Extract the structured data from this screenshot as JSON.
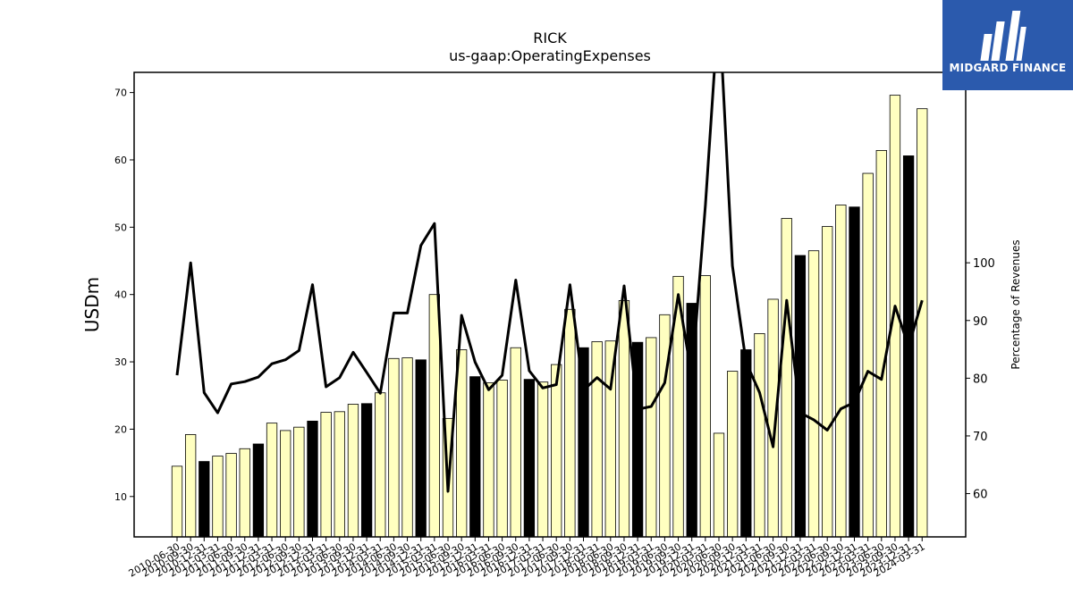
{
  "chart_data": {
    "type": "bar",
    "title": "RICK",
    "subtitle": "us-gaap:OperatingExpenses",
    "ylabel": "USDm",
    "y2label": "Percentage of Revenues",
    "ylim": [
      4,
      73
    ],
    "y2lim": [
      52.5,
      133
    ],
    "yticks": [
      10,
      20,
      30,
      40,
      50,
      60,
      70
    ],
    "y2ticks": [
      60,
      70,
      80,
      90,
      100
    ],
    "categories": [
      "2010-06-30",
      "2010-09-30",
      "2010-12-31",
      "2011-03-31",
      "2011-06-30",
      "2011-09-30",
      "2011-12-31",
      "2012-03-31",
      "2012-06-30",
      "2012-09-30",
      "2012-12-31",
      "2013-03-31",
      "2013-06-30",
      "2013-09-30",
      "2013-12-31",
      "2014-03-31",
      "2014-06-30",
      "2014-09-30",
      "2014-12-31",
      "2015-03-31",
      "2015-06-30",
      "2015-09-30",
      "2015-12-31",
      "2016-03-31",
      "2016-06-30",
      "2016-09-30",
      "2016-12-31",
      "2017-03-31",
      "2017-06-30",
      "2017-09-30",
      "2017-12-31",
      "2018-03-31",
      "2018-06-30",
      "2018-09-30",
      "2018-12-31",
      "2019-03-31",
      "2019-06-30",
      "2019-09-30",
      "2019-12-31",
      "2020-03-31",
      "2020-06-30",
      "2020-09-30",
      "2020-12-31",
      "2021-03-31",
      "2021-06-30",
      "2021-09-30",
      "2021-12-31",
      "2022-03-31",
      "2022-06-30",
      "2022-09-30",
      "2022-12-31",
      "2023-03-31",
      "2023-06-30",
      "2023-09-30",
      "2023-12-31",
      "2024-03-31"
    ],
    "series": [
      {
        "kind": "bar",
        "values": [
          14.5,
          19.2,
          15.2,
          16.0,
          16.4,
          17.1,
          17.8,
          20.9,
          19.8,
          20.3,
          21.2,
          22.5,
          22.6,
          23.7,
          23.8,
          25.4,
          30.5,
          30.6,
          30.3,
          40.0,
          21.6,
          31.8,
          27.8,
          26.9,
          27.3,
          32.1,
          27.4,
          27.0,
          29.6,
          37.8,
          32.1,
          33.0,
          33.1,
          39.1,
          32.9,
          33.6,
          37.0,
          42.7,
          38.7,
          42.8,
          19.4,
          28.6,
          31.8,
          34.2,
          39.3,
          51.3,
          45.8,
          46.5,
          50.1,
          53.3,
          53.0,
          58.0,
          61.4,
          69.6,
          60.6,
          67.6
        ],
        "dark_flags": [
          0,
          0,
          1,
          0,
          0,
          0,
          1,
          0,
          0,
          0,
          1,
          0,
          0,
          0,
          1,
          0,
          0,
          0,
          1,
          0,
          0,
          0,
          1,
          0,
          0,
          0,
          1,
          0,
          0,
          0,
          1,
          0,
          0,
          0,
          1,
          0,
          0,
          0,
          1,
          0,
          0,
          0,
          1,
          0,
          0,
          0,
          1,
          0,
          0,
          0,
          1,
          0,
          0,
          0,
          1,
          0
        ]
      },
      {
        "kind": "line",
        "axis": "secondary",
        "values": [
          80.5,
          100.0,
          77.5,
          74.0,
          79.0,
          79.4,
          80.2,
          82.5,
          83.2,
          84.8,
          96.2,
          78.5,
          80.1,
          84.5,
          81.0,
          77.4,
          91.3,
          91.3,
          103.0,
          106.8,
          60.4,
          90.9,
          82.8,
          78.0,
          80.5,
          97.0,
          81.3,
          78.3,
          78.9,
          96.2,
          77.9,
          80.1,
          78.1,
          96.0,
          74.6,
          75.1,
          79.2,
          94.5,
          80.2,
          110.0,
          145.0,
          99.5,
          82.8,
          77.5,
          68.1,
          93.5,
          74.0,
          72.8,
          71.0,
          74.7,
          75.8,
          81.2,
          79.8,
          92.5,
          85.5,
          93.5
        ]
      }
    ],
    "colors": {
      "bar_light": "#ffffc0",
      "bar_dark": "#000000",
      "bar_edge": "#000000",
      "line": "#000000"
    },
    "grid": false
  },
  "logo": {
    "text": "MIDGARD FINANCE"
  }
}
